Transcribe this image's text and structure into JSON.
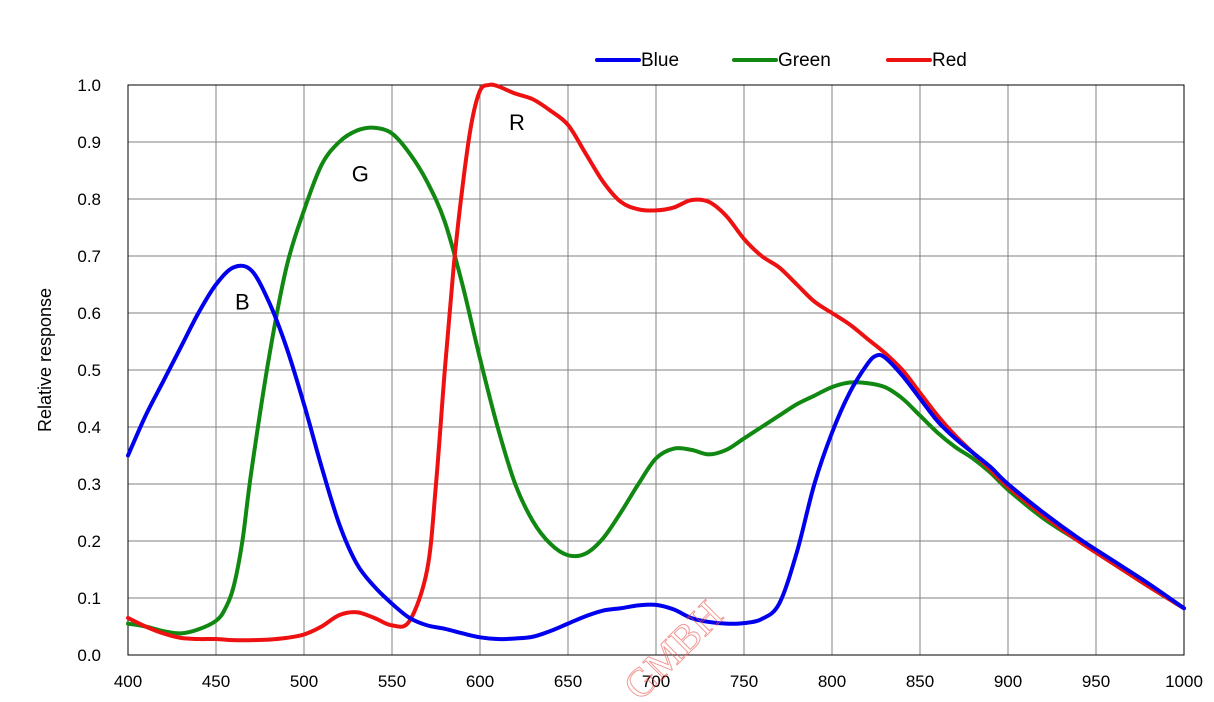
{
  "chart_data": {
    "type": "line",
    "title": "",
    "xlabel": "",
    "ylabel": "Relative response",
    "xlim": [
      400,
      1000
    ],
    "ylim": [
      0.0,
      1.0
    ],
    "x_ticks": [
      "400",
      "450",
      "500",
      "550",
      "600",
      "650",
      "700",
      "750",
      "800",
      "850",
      "900",
      "950",
      "1000"
    ],
    "y_ticks": [
      "0.0",
      "0.1",
      "0.2",
      "0.3",
      "0.4",
      "0.5",
      "0.6",
      "0.7",
      "0.8",
      "0.9",
      "1.0"
    ],
    "grid": true,
    "legend_position": "top-right",
    "series": [
      {
        "name": "Blue",
        "color": "#0000ee",
        "points": [
          [
            400,
            0.35
          ],
          [
            410,
            0.42
          ],
          [
            420,
            0.48
          ],
          [
            430,
            0.54
          ],
          [
            440,
            0.6
          ],
          [
            450,
            0.65
          ],
          [
            460,
            0.68
          ],
          [
            470,
            0.675
          ],
          [
            480,
            0.62
          ],
          [
            490,
            0.54
          ],
          [
            500,
            0.44
          ],
          [
            510,
            0.33
          ],
          [
            520,
            0.23
          ],
          [
            530,
            0.16
          ],
          [
            540,
            0.12
          ],
          [
            550,
            0.09
          ],
          [
            560,
            0.065
          ],
          [
            570,
            0.052
          ],
          [
            580,
            0.046
          ],
          [
            590,
            0.038
          ],
          [
            600,
            0.031
          ],
          [
            610,
            0.028
          ],
          [
            620,
            0.029
          ],
          [
            630,
            0.032
          ],
          [
            640,
            0.042
          ],
          [
            650,
            0.055
          ],
          [
            660,
            0.068
          ],
          [
            670,
            0.078
          ],
          [
            680,
            0.082
          ],
          [
            690,
            0.087
          ],
          [
            700,
            0.088
          ],
          [
            710,
            0.08
          ],
          [
            720,
            0.065
          ],
          [
            730,
            0.058
          ],
          [
            740,
            0.055
          ],
          [
            750,
            0.056
          ],
          [
            760,
            0.063
          ],
          [
            770,
            0.09
          ],
          [
            780,
            0.18
          ],
          [
            790,
            0.3
          ],
          [
            800,
            0.39
          ],
          [
            810,
            0.46
          ],
          [
            820,
            0.51
          ],
          [
            825,
            0.525
          ],
          [
            830,
            0.522
          ],
          [
            840,
            0.49
          ],
          [
            850,
            0.45
          ],
          [
            860,
            0.41
          ],
          [
            870,
            0.38
          ],
          [
            880,
            0.355
          ],
          [
            890,
            0.33
          ],
          [
            900,
            0.3
          ],
          [
            920,
            0.25
          ],
          [
            940,
            0.205
          ],
          [
            960,
            0.165
          ],
          [
            980,
            0.125
          ],
          [
            1000,
            0.082
          ]
        ]
      },
      {
        "name": "Green",
        "color": "#118811",
        "points": [
          [
            400,
            0.055
          ],
          [
            410,
            0.05
          ],
          [
            420,
            0.042
          ],
          [
            430,
            0.038
          ],
          [
            440,
            0.045
          ],
          [
            450,
            0.06
          ],
          [
            455,
            0.08
          ],
          [
            460,
            0.12
          ],
          [
            465,
            0.2
          ],
          [
            470,
            0.32
          ],
          [
            480,
            0.52
          ],
          [
            490,
            0.68
          ],
          [
            500,
            0.78
          ],
          [
            510,
            0.86
          ],
          [
            520,
            0.9
          ],
          [
            530,
            0.92
          ],
          [
            540,
            0.925
          ],
          [
            550,
            0.915
          ],
          [
            560,
            0.88
          ],
          [
            570,
            0.83
          ],
          [
            580,
            0.76
          ],
          [
            590,
            0.65
          ],
          [
            600,
            0.52
          ],
          [
            610,
            0.4
          ],
          [
            620,
            0.3
          ],
          [
            630,
            0.235
          ],
          [
            640,
            0.195
          ],
          [
            650,
            0.175
          ],
          [
            660,
            0.178
          ],
          [
            670,
            0.205
          ],
          [
            680,
            0.25
          ],
          [
            690,
            0.3
          ],
          [
            700,
            0.345
          ],
          [
            710,
            0.362
          ],
          [
            720,
            0.36
          ],
          [
            730,
            0.352
          ],
          [
            740,
            0.36
          ],
          [
            750,
            0.38
          ],
          [
            760,
            0.4
          ],
          [
            770,
            0.42
          ],
          [
            780,
            0.44
          ],
          [
            790,
            0.455
          ],
          [
            800,
            0.47
          ],
          [
            810,
            0.478
          ],
          [
            820,
            0.477
          ],
          [
            830,
            0.47
          ],
          [
            840,
            0.45
          ],
          [
            850,
            0.42
          ],
          [
            860,
            0.39
          ],
          [
            870,
            0.365
          ],
          [
            880,
            0.345
          ],
          [
            890,
            0.32
          ],
          [
            900,
            0.29
          ],
          [
            920,
            0.24
          ],
          [
            940,
            0.2
          ],
          [
            960,
            0.16
          ],
          [
            980,
            0.12
          ],
          [
            1000,
            0.082
          ]
        ]
      },
      {
        "name": "Red",
        "color": "#ee1111",
        "points": [
          [
            400,
            0.065
          ],
          [
            410,
            0.05
          ],
          [
            420,
            0.038
          ],
          [
            430,
            0.03
          ],
          [
            440,
            0.028
          ],
          [
            450,
            0.028
          ],
          [
            460,
            0.026
          ],
          [
            470,
            0.026
          ],
          [
            480,
            0.027
          ],
          [
            490,
            0.03
          ],
          [
            500,
            0.036
          ],
          [
            510,
            0.05
          ],
          [
            520,
            0.07
          ],
          [
            530,
            0.075
          ],
          [
            540,
            0.065
          ],
          [
            550,
            0.052
          ],
          [
            560,
            0.06
          ],
          [
            570,
            0.15
          ],
          [
            575,
            0.3
          ],
          [
            580,
            0.5
          ],
          [
            585,
            0.68
          ],
          [
            590,
            0.82
          ],
          [
            595,
            0.93
          ],
          [
            600,
            0.99
          ],
          [
            605,
            1.0
          ],
          [
            610,
            0.998
          ],
          [
            620,
            0.985
          ],
          [
            630,
            0.975
          ],
          [
            640,
            0.955
          ],
          [
            650,
            0.93
          ],
          [
            660,
            0.88
          ],
          [
            670,
            0.83
          ],
          [
            680,
            0.795
          ],
          [
            690,
            0.782
          ],
          [
            700,
            0.78
          ],
          [
            710,
            0.785
          ],
          [
            720,
            0.798
          ],
          [
            730,
            0.795
          ],
          [
            740,
            0.77
          ],
          [
            750,
            0.73
          ],
          [
            760,
            0.7
          ],
          [
            770,
            0.68
          ],
          [
            780,
            0.65
          ],
          [
            790,
            0.62
          ],
          [
            800,
            0.6
          ],
          [
            810,
            0.58
          ],
          [
            820,
            0.555
          ],
          [
            830,
            0.53
          ],
          [
            840,
            0.5
          ],
          [
            850,
            0.46
          ],
          [
            860,
            0.42
          ],
          [
            870,
            0.385
          ],
          [
            880,
            0.355
          ],
          [
            890,
            0.325
          ],
          [
            900,
            0.295
          ],
          [
            920,
            0.245
          ],
          [
            940,
            0.2
          ],
          [
            960,
            0.16
          ],
          [
            980,
            0.12
          ],
          [
            1000,
            0.082
          ]
        ]
      }
    ],
    "annotations": [
      {
        "text": "B",
        "x": 465,
        "y": 0.62
      },
      {
        "text": "G",
        "x": 532,
        "y": 0.845
      },
      {
        "text": "R",
        "x": 621,
        "y": 0.935
      }
    ],
    "watermark": "GMBH"
  }
}
